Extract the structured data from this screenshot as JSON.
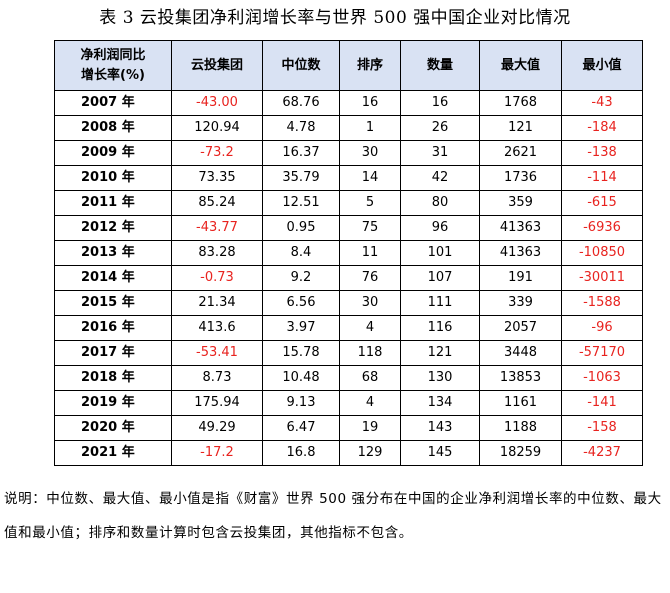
{
  "title": "表 3  云投集团净利润增长率与世界 500 强中国企业对比情况",
  "header": {
    "row_label_line1": "净利润同比",
    "row_label_line2": "增长率(%)",
    "columns": [
      "云投集团",
      "中位数",
      "排序",
      "数量",
      "最大值",
      "最小值"
    ]
  },
  "rows": [
    {
      "year": "2007 年",
      "yuntou": "-43.00",
      "median": "68.76",
      "rank": "16",
      "count": "16",
      "max": "1768",
      "min": "-43"
    },
    {
      "year": "2008 年",
      "yuntou": "120.94",
      "median": "4.78",
      "rank": "1",
      "count": "26",
      "max": "121",
      "min": "-184"
    },
    {
      "year": "2009 年",
      "yuntou": "-73.2",
      "median": "16.37",
      "rank": "30",
      "count": "31",
      "max": "2621",
      "min": "-138"
    },
    {
      "year": "2010 年",
      "yuntou": "73.35",
      "median": "35.79",
      "rank": "14",
      "count": "42",
      "max": "1736",
      "min": "-114"
    },
    {
      "year": "2011 年",
      "yuntou": "85.24",
      "median": "12.51",
      "rank": "5",
      "count": "80",
      "max": "359",
      "min": "-615"
    },
    {
      "year": "2012 年",
      "yuntou": "-43.77",
      "median": "0.95",
      "rank": "75",
      "count": "96",
      "max": "41363",
      "min": "-6936"
    },
    {
      "year": "2013 年",
      "yuntou": "83.28",
      "median": "8.4",
      "rank": "11",
      "count": "101",
      "max": "41363",
      "min": "-10850"
    },
    {
      "year": "2014 年",
      "yuntou": "-0.73",
      "median": "9.2",
      "rank": "76",
      "count": "107",
      "max": "191",
      "min": "-30011"
    },
    {
      "year": "2015 年",
      "yuntou": "21.34",
      "median": "6.56",
      "rank": "30",
      "count": "111",
      "max": "339",
      "min": "-1588"
    },
    {
      "year": "2016 年",
      "yuntou": "413.6",
      "median": "3.97",
      "rank": "4",
      "count": "116",
      "max": "2057",
      "min": "-96"
    },
    {
      "year": "2017 年",
      "yuntou": "-53.41",
      "median": "15.78",
      "rank": "118",
      "count": "121",
      "max": "3448",
      "min": "-57170"
    },
    {
      "year": "2018 年",
      "yuntou": "8.73",
      "median": "10.48",
      "rank": "68",
      "count": "130",
      "max": "13853",
      "min": "-1063"
    },
    {
      "year": "2019 年",
      "yuntou": "175.94",
      "median": "9.13",
      "rank": "4",
      "count": "134",
      "max": "1161",
      "min": "-141"
    },
    {
      "year": "2020 年",
      "yuntou": "49.29",
      "median": "6.47",
      "rank": "19",
      "count": "143",
      "max": "1188",
      "min": "-158"
    },
    {
      "year": "2021 年",
      "yuntou": "-17.2",
      "median": "16.8",
      "rank": "129",
      "count": "145",
      "max": "18259",
      "min": "-4237"
    }
  ],
  "colors": {
    "negative_value": "#e8231f",
    "header_background": "#d9e2f3"
  },
  "note": "说明：中位数、最大值、最小值是指《财富》世界 500 强分布在中国的企业净利润增长率的中位数、最大值和最小值；排序和数量计算时包含云投集团，其他指标不包含。"
}
